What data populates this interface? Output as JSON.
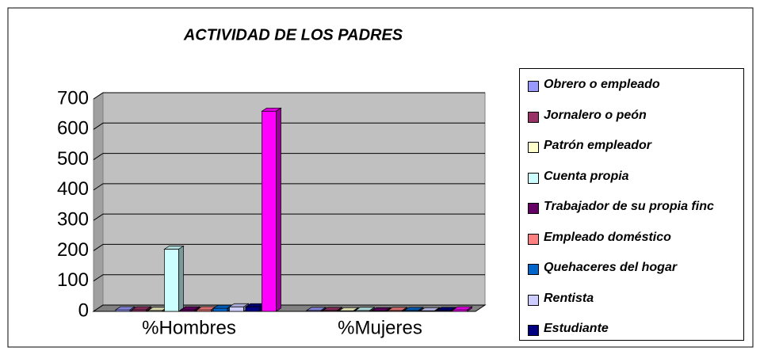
{
  "chart_data": {
    "type": "bar3d",
    "title": "ACTIVIDAD DE LOS PADRES",
    "categories": [
      "%Hombres",
      "%Mujeres"
    ],
    "ylim": [
      0,
      700
    ],
    "yticks": [
      0,
      100,
      200,
      300,
      400,
      500,
      600,
      700
    ],
    "grid": true,
    "series": [
      {
        "name": "Obrero o empleado",
        "color": "#9999ff",
        "values": [
          5,
          3
        ]
      },
      {
        "name": "Jornalero o peón",
        "color": "#993366",
        "values": [
          5,
          3
        ]
      },
      {
        "name": "Patrón empleador",
        "color": "#ffffcc",
        "values": [
          3,
          2
        ]
      },
      {
        "name": "Cuenta propia",
        "color": "#ccffff",
        "values": [
          205,
          3
        ]
      },
      {
        "name": "Trabajador de su propia finc",
        "color": "#660066",
        "values": [
          5,
          2
        ]
      },
      {
        "name": "Empleado doméstico",
        "color": "#ff8080",
        "values": [
          5,
          3
        ]
      },
      {
        "name": "Quehaceres del hogar",
        "color": "#0066cc",
        "values": [
          10,
          3
        ]
      },
      {
        "name": "Rentista",
        "color": "#ccccff",
        "values": [
          15,
          2
        ]
      },
      {
        "name": "Estudiante",
        "color": "#000080",
        "values": [
          15,
          3
        ]
      },
      {
        "name": null,
        "color": "#ff00ff",
        "values": [
          660,
          5
        ]
      }
    ]
  }
}
